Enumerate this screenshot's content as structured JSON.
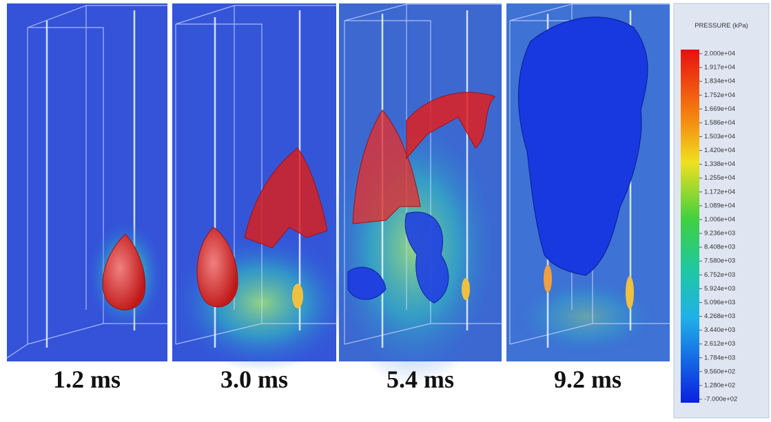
{
  "panels": [
    {
      "label": "1.2 ms"
    },
    {
      "label": "3.0 ms"
    },
    {
      "label": "5.4 ms"
    },
    {
      "label": "9.2 ms"
    }
  ],
  "colorbar": {
    "title": "PRESSURE (kPa)",
    "labels": [
      "2.000e+04",
      "1.917e+04",
      "1.834e+04",
      "1.752e+04",
      "1.669e+04",
      "1.586e+04",
      "1.503e+04",
      "1.420e+04",
      "1.338e+04",
      "1.255e+04",
      "1.172e+04",
      "1.089e+04",
      "1.006e+04",
      "9.236e+03",
      "8.408e+03",
      "7.580e+03",
      "6.752e+03",
      "5.924e+03",
      "5.096e+03",
      "4.268e+03",
      "3.440e+03",
      "2.612e+03",
      "1.784e+03",
      "9.560e+02",
      "1.280e+02",
      "-7.000e+02"
    ]
  }
}
